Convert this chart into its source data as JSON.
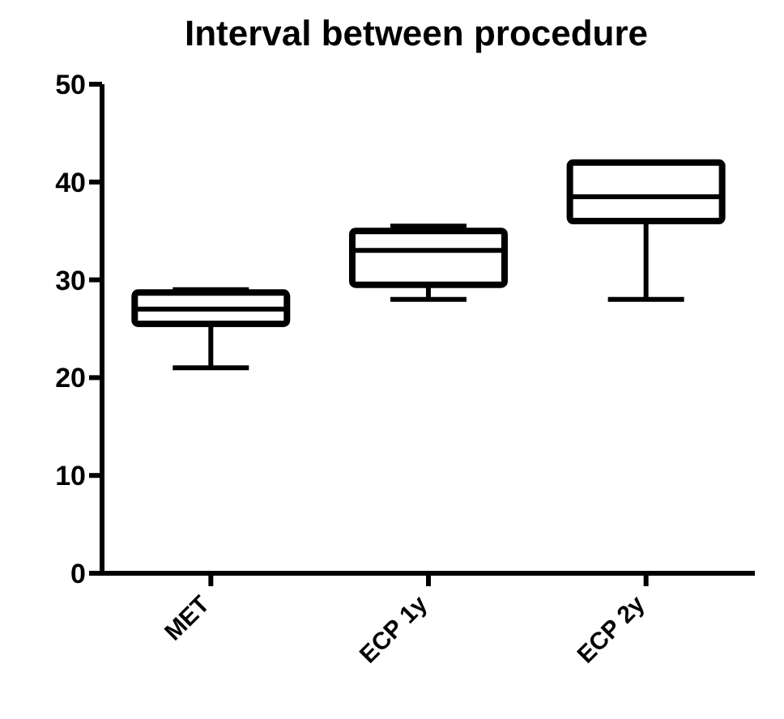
{
  "chart_data": {
    "type": "box",
    "title": "Interval between procedure",
    "categories": [
      "MET",
      "ECP 1y",
      "ECP 2y"
    ],
    "color": "#000000",
    "boxes": [
      {
        "low": 21,
        "q1": 25.5,
        "median": 27,
        "q3": 28.7,
        "high": 29
      },
      {
        "low": 28,
        "q1": 29.5,
        "median": 33,
        "q3": 35,
        "high": 35.5
      },
      {
        "low": 28,
        "q1": 36,
        "median": 38.5,
        "q3": 42,
        "high": 42
      }
    ],
    "ylim": [
      0,
      50
    ],
    "yticks": [
      0,
      10,
      20,
      30,
      40,
      50
    ],
    "grid": false
  }
}
